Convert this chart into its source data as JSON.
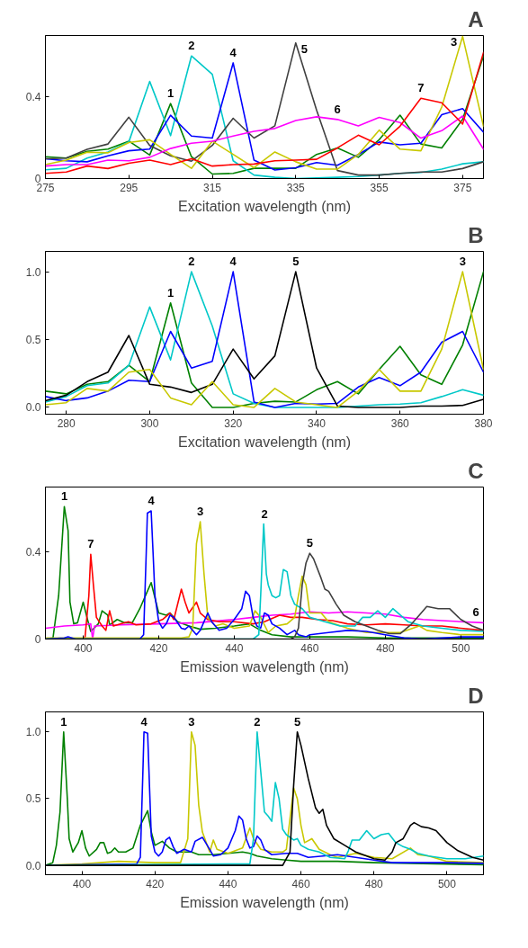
{
  "chart_data": [
    {
      "type": "line",
      "title": "A",
      "xlabel": "Excitation wavelength (nm)",
      "xlim": [
        275,
        380
      ],
      "xticks": [
        275,
        295,
        315,
        335,
        355,
        375
      ],
      "ylim": [
        0,
        0.7
      ],
      "yticks": [
        0,
        0.4
      ],
      "grid": false,
      "x": [
        275,
        280,
        285,
        290,
        295,
        300,
        305,
        310,
        315,
        320,
        325,
        330,
        335,
        340,
        345,
        350,
        355,
        360,
        365,
        370,
        375,
        380
      ],
      "series": [
        {
          "color": "#008000",
          "values": [
            0.107,
            0.1,
            0.133,
            0.144,
            0.183,
            0.115,
            0.367,
            0.107,
            0.022,
            0.025,
            0.05,
            0.05,
            0.05,
            0.118,
            0.15,
            0.104,
            0.19,
            0.31,
            0.169,
            0.15,
            0.29,
            0.6
          ]
        },
        {
          "color": "#00c8c8",
          "values": [
            0.043,
            0.05,
            0.1,
            0.13,
            0.18,
            0.475,
            0.21,
            0.6,
            0.51,
            0.087,
            0.017,
            0.006,
            0,
            0.003,
            0.006,
            0.01,
            0.017,
            0.025,
            0.03,
            0.046,
            0.072,
            0.082
          ]
        },
        {
          "color": "#0000ff",
          "values": [
            0.097,
            0.087,
            0.082,
            0.111,
            0.136,
            0.144,
            0.31,
            0.208,
            0.198,
            0.566,
            0.09,
            0.042,
            0.053,
            0.078,
            0.065,
            0.118,
            0.179,
            0.165,
            0.173,
            0.313,
            0.342,
            0.227
          ]
        },
        {
          "color": "#404040",
          "values": [
            0.097,
            0.1,
            0.143,
            0.169,
            0.3,
            0.162,
            0.111,
            0.085,
            0.162,
            0.295,
            0.198,
            0.258,
            0.664,
            0.335,
            0.039,
            0.017,
            0.017,
            0.025,
            0.032,
            0.032,
            0.049,
            0.082
          ]
        },
        {
          "color": "#c8c800",
          "values": [
            0.068,
            0.09,
            0.129,
            0.126,
            0.176,
            0.19,
            0.118,
            0.05,
            0.183,
            0.118,
            0.053,
            0.13,
            0.082,
            0.046,
            0.046,
            0.118,
            0.237,
            0.144,
            0.136,
            0.35,
            0.696,
            0.256
          ]
        },
        {
          "color": "#ff00ff",
          "values": [
            0.061,
            0.068,
            0.068,
            0.09,
            0.087,
            0.104,
            0.147,
            0.173,
            0.183,
            0.208,
            0.231,
            0.245,
            0.284,
            0.302,
            0.289,
            0.258,
            0.299,
            0.274,
            0.198,
            0.234,
            0.306,
            0.144
          ]
        },
        {
          "color": "#ff0000",
          "values": [
            0.025,
            0.032,
            0.061,
            0.049,
            0.075,
            0.09,
            0.068,
            0.097,
            0.061,
            0.068,
            0.071,
            0.087,
            0.09,
            0.094,
            0.15,
            0.212,
            0.165,
            0.256,
            0.393,
            0.371,
            0.267,
            0.617
          ]
        }
      ],
      "annotations": [
        {
          "text": "1",
          "x": 305,
          "y": 0.367
        },
        {
          "text": "2",
          "x": 310,
          "y": 0.6
        },
        {
          "text": "4",
          "x": 320,
          "y": 0.566
        },
        {
          "text": "5",
          "x": 335,
          "y": 0.664
        },
        {
          "text": "6",
          "x": 345,
          "y": 0.289
        },
        {
          "text": "7",
          "x": 365,
          "y": 0.393
        },
        {
          "text": "3",
          "x": 375,
          "y": 0.696
        }
      ]
    },
    {
      "type": "line",
      "title": "B",
      "xlabel": "Excitation wavelength (nm)",
      "xlim": [
        275,
        380
      ],
      "xticks": [
        280,
        300,
        320,
        340,
        360,
        380
      ],
      "ylim": [
        -0.05,
        1.15
      ],
      "yticks": [
        {
          "value": 0,
          "label": "0.0"
        },
        {
          "value": 0.5,
          "label": "0.5"
        },
        {
          "value": 1,
          "label": "1.0"
        }
      ],
      "grid": false,
      "x": [
        275,
        280,
        285,
        290,
        295,
        300,
        305,
        310,
        315,
        320,
        325,
        330,
        335,
        340,
        345,
        350,
        355,
        360,
        365,
        370,
        375,
        380
      ],
      "series": [
        {
          "color": "#008000",
          "values": [
            0.12,
            0.1,
            0.17,
            0.19,
            0.31,
            0.19,
            0.77,
            0.18,
            0,
            0,
            0.03,
            0.045,
            0.04,
            0.13,
            0.19,
            0.1,
            0.28,
            0.45,
            0.24,
            0.17,
            0.46,
            1.0
          ]
        },
        {
          "color": "#00c8c8",
          "values": [
            0.04,
            0.08,
            0.16,
            0.18,
            0.31,
            0.74,
            0.35,
            1.0,
            0.6,
            0.1,
            0.03,
            0,
            0,
            0,
            0,
            0.01,
            0.02,
            0.025,
            0.035,
            0.08,
            0.13,
            0.09
          ]
        },
        {
          "color": "#0000ff",
          "values": [
            0.08,
            0.05,
            0.07,
            0.12,
            0.2,
            0.19,
            0.56,
            0.29,
            0.34,
            1.0,
            0.04,
            0,
            0.03,
            0.025,
            0.03,
            0.15,
            0.22,
            0.16,
            0.26,
            0.48,
            0.56,
            0.26
          ]
        },
        {
          "color": "#000000",
          "values": [
            0.05,
            0.09,
            0.19,
            0.26,
            0.53,
            0.17,
            0.15,
            0.11,
            0.17,
            0.43,
            0.21,
            0.38,
            1.0,
            0.29,
            0.01,
            0,
            0,
            0,
            0.01,
            0.01,
            0.015,
            0.06
          ]
        },
        {
          "color": "#c8c800",
          "values": [
            0.02,
            0.035,
            0.14,
            0.12,
            0.26,
            0.28,
            0.07,
            0.02,
            0.19,
            0.02,
            0,
            0.14,
            0.04,
            0.02,
            0,
            0.12,
            0.28,
            0.12,
            0.12,
            0.43,
            1.0,
            0.28
          ]
        }
      ],
      "annotations": [
        {
          "text": "1",
          "x": 305,
          "y": 0.77
        },
        {
          "text": "2",
          "x": 310,
          "y": 1.0
        },
        {
          "text": "4",
          "x": 320,
          "y": 1.0
        },
        {
          "text": "5",
          "x": 335,
          "y": 1.0
        },
        {
          "text": "3",
          "x": 375,
          "y": 1.0
        }
      ]
    },
    {
      "type": "line",
      "title": "C",
      "xlabel": "Emission wavelength (nm)",
      "xlim": [
        390,
        506
      ],
      "xticks": [
        400,
        420,
        440,
        460,
        480,
        500
      ],
      "ylim": [
        0,
        0.7
      ],
      "yticks": [
        0,
        0.4
      ],
      "grid": false,
      "series": [
        {
          "color": "#008000",
          "x": [
            390,
            392,
            393.5,
            395,
            396,
            396.5,
            397.5,
            398.5,
            400,
            401,
            402,
            404,
            405,
            406.5,
            407,
            409,
            411,
            413,
            415,
            417,
            418,
            419,
            420,
            422,
            423,
            425,
            428,
            431,
            435,
            440,
            444,
            447,
            450,
            455,
            460,
            470,
            480,
            490,
            500,
            506
          ],
          "values": [
            0,
            0.005,
            0.2,
            0.61,
            0.5,
            0.17,
            0.07,
            0.075,
            0.17,
            0.1,
            0.035,
            0.07,
            0.13,
            0.11,
            0.065,
            0.09,
            0.075,
            0.075,
            0.14,
            0.22,
            0.26,
            0.19,
            0.12,
            0.11,
            0.12,
            0.08,
            0.06,
            0.045,
            0.05,
            0.06,
            0.07,
            0.04,
            0.02,
            0.01,
            0.01,
            0.01,
            0.005,
            0.005,
            0.005,
            0.005
          ]
        },
        {
          "color": "#ff00ff",
          "x": [
            390,
            395,
            400,
            402,
            402.5,
            403,
            410,
            420,
            430,
            440,
            445,
            450,
            455,
            460,
            465,
            470,
            475,
            480,
            485,
            490,
            495,
            500,
            506
          ],
          "values": [
            0.05,
            0.06,
            0.065,
            0.07,
            0.0,
            0.06,
            0.065,
            0.07,
            0.075,
            0.09,
            0.1,
            0.11,
            0.115,
            0.125,
            0.12,
            0.125,
            0.12,
            0.115,
            0.1,
            0.09,
            0.085,
            0.08,
            0.075
          ]
        },
        {
          "color": "#ff0000",
          "x": [
            390,
            400,
            400.5,
            401.5,
            402,
            402.7,
            403.5,
            405,
            406,
            407,
            408,
            410,
            412,
            414,
            418,
            421,
            423,
            424,
            426,
            427,
            428,
            430,
            431,
            433,
            436,
            440,
            445,
            448,
            452,
            455,
            458,
            462,
            466,
            470,
            475,
            480,
            485,
            490,
            495,
            500,
            506
          ],
          "values": [
            0,
            0,
            0.01,
            0.2,
            0.39,
            0.25,
            0.1,
            0.06,
            0.04,
            0.13,
            0.06,
            0.07,
            0.08,
            0.065,
            0.07,
            0.09,
            0.12,
            0.09,
            0.23,
            0.17,
            0.12,
            0.17,
            0.12,
            0.09,
            0.08,
            0.08,
            0.07,
            0.08,
            0.11,
            0.1,
            0.1,
            0.09,
            0.085,
            0.07,
            0.065,
            0.07,
            0.065,
            0.06,
            0.06,
            0.05,
            0.04
          ]
        },
        {
          "color": "#c8c800",
          "x": [
            390,
            400,
            410,
            420,
            426,
            428,
            429,
            430,
            431,
            432,
            433,
            435,
            437,
            440,
            444,
            445.5,
            447,
            449,
            451,
            454,
            456,
            457,
            458,
            459,
            460,
            463,
            465,
            470,
            475,
            480,
            484,
            489,
            491,
            495,
            500,
            506
          ],
          "values": [
            0.005,
            0.005,
            0.005,
            0.005,
            0.005,
            0.01,
            0.05,
            0.44,
            0.54,
            0.3,
            0.1,
            0.06,
            0.07,
            0.05,
            0.06,
            0.13,
            0.1,
            0.03,
            0.06,
            0.07,
            0.1,
            0.2,
            0.29,
            0.25,
            0.12,
            0.12,
            0.08,
            0.05,
            0.03,
            0.03,
            0.03,
            0.06,
            0.04,
            0.03,
            0.02,
            0.02
          ]
        },
        {
          "color": "#0000ff",
          "x": [
            390,
            395,
            396,
            398,
            415,
            416,
            416.7,
            417,
            418,
            418.5,
            419,
            420,
            421,
            422,
            423,
            424,
            426,
            427,
            428,
            430,
            431,
            433,
            434,
            436,
            438,
            440,
            442,
            443,
            444,
            445,
            446,
            447,
            448,
            449,
            450,
            452,
            454,
            456,
            457,
            459,
            460,
            465,
            470,
            475,
            480,
            485,
            490,
            500,
            506
          ],
          "values": [
            0,
            0.005,
            0.01,
            0,
            0,
            0.02,
            0.4,
            0.58,
            0.59,
            0.4,
            0.2,
            0.08,
            0.05,
            0.07,
            0.11,
            0.1,
            0.05,
            0.045,
            0.06,
            0.02,
            0.04,
            0.12,
            0.08,
            0.04,
            0.05,
            0.09,
            0.14,
            0.22,
            0.2,
            0.1,
            0.06,
            0.05,
            0.12,
            0.11,
            0.07,
            0.05,
            0.02,
            0.04,
            0.02,
            0.01,
            0.02,
            0.03,
            0.04,
            0.035,
            0.02,
            0.005,
            0,
            0.01,
            0.01
          ]
        },
        {
          "color": "#00c8c8",
          "x": [
            390,
            445,
            446.5,
            447,
            447.8,
            448.5,
            449,
            450,
            451,
            452,
            453,
            454,
            455,
            456,
            458,
            460,
            462,
            464,
            468,
            472,
            474,
            476,
            478,
            480,
            482,
            484,
            486,
            490,
            495,
            500,
            506
          ],
          "values": [
            0,
            0,
            0.02,
            0.2,
            0.53,
            0.3,
            0.25,
            0.2,
            0.19,
            0.2,
            0.32,
            0.31,
            0.2,
            0.16,
            0.14,
            0.1,
            0.09,
            0.08,
            0.06,
            0.06,
            0.1,
            0.1,
            0.13,
            0.1,
            0.14,
            0.11,
            0.08,
            0.06,
            0.05,
            0.04,
            0.035
          ]
        },
        {
          "color": "#404040",
          "x": [
            390,
            455,
            456,
            457,
            458,
            459,
            460,
            461,
            463,
            464,
            465,
            467,
            469,
            472,
            475,
            478,
            481,
            484,
            487,
            489,
            491,
            494,
            497,
            500,
            503,
            506
          ],
          "values": [
            0,
            0,
            0.01,
            0.05,
            0.25,
            0.35,
            0.395,
            0.37,
            0.28,
            0.23,
            0.22,
            0.16,
            0.11,
            0.08,
            0.06,
            0.04,
            0.025,
            0.025,
            0.07,
            0.11,
            0.15,
            0.14,
            0.14,
            0.09,
            0.06,
            0.04
          ]
        }
      ],
      "annotations": [
        {
          "text": "1",
          "x": 395,
          "y": 0.61
        },
        {
          "text": "7",
          "x": 402,
          "y": 0.39
        },
        {
          "text": "4",
          "x": 418,
          "y": 0.59
        },
        {
          "text": "3",
          "x": 431,
          "y": 0.54
        },
        {
          "text": "2",
          "x": 448,
          "y": 0.53
        },
        {
          "text": "5",
          "x": 460,
          "y": 0.395
        },
        {
          "text": "6",
          "x": 504,
          "y": 0.075
        }
      ]
    },
    {
      "type": "line",
      "title": "D",
      "xlabel": "Emission wavelength (nm)",
      "xlim": [
        390,
        510
      ],
      "xticks": [
        400,
        420,
        440,
        460,
        480,
        500
      ],
      "ylim": [
        -0.07,
        1.15
      ],
      "yticks": [
        {
          "value": 0,
          "label": "0.0"
        },
        {
          "value": 0.5,
          "label": "0.5"
        },
        {
          "value": 1,
          "label": "1.0"
        }
      ],
      "grid": false,
      "series": [
        {
          "color": "#008000",
          "x": [
            390,
            392,
            393,
            394,
            395,
            396,
            396.5,
            397.5,
            399,
            400,
            401,
            402,
            404,
            405,
            406,
            407,
            408,
            409,
            410,
            412,
            414,
            416,
            418,
            419,
            420,
            422,
            424,
            426,
            430,
            432,
            436,
            440,
            444,
            446,
            448,
            452,
            456,
            460,
            470,
            480,
            490,
            500,
            510
          ],
          "values": [
            0,
            0.02,
            0.15,
            0.4,
            1.0,
            0.5,
            0.2,
            0.1,
            0.17,
            0.26,
            0.13,
            0.07,
            0.12,
            0.17,
            0.17,
            0.09,
            0.1,
            0.13,
            0.1,
            0.1,
            0.13,
            0.3,
            0.41,
            0.25,
            0.15,
            0.18,
            0.13,
            0.1,
            0.1,
            0.08,
            0.08,
            0.09,
            0.1,
            0.09,
            0.07,
            0.05,
            0.04,
            0.03,
            0.03,
            0.02,
            0.015,
            0.01,
            0.005
          ]
        },
        {
          "color": "#c8c800",
          "x": [
            390,
            400,
            410,
            420,
            427,
            429,
            430,
            431,
            432,
            433,
            435,
            436,
            437,
            440,
            444,
            446,
            447,
            449,
            452,
            455,
            456,
            457,
            458,
            459,
            460,
            461,
            463,
            465,
            468,
            470,
            475,
            480,
            485,
            490,
            492,
            495,
            500,
            510
          ],
          "values": [
            0,
            0.01,
            0.03,
            0.02,
            0.02,
            0.2,
            1.0,
            0.9,
            0.45,
            0.25,
            0.1,
            0.19,
            0.12,
            0.09,
            0.13,
            0.28,
            0.2,
            0.12,
            0.1,
            0.1,
            0.12,
            0.35,
            0.58,
            0.5,
            0.3,
            0.17,
            0.2,
            0.12,
            0.08,
            0.06,
            0.09,
            0.06,
            0.05,
            0.13,
            0.08,
            0.07,
            0.03,
            0.02
          ]
        },
        {
          "color": "#0000ff",
          "x": [
            390,
            415,
            416,
            416.7,
            417,
            418,
            418.5,
            419,
            420,
            421,
            422,
            423,
            424,
            425,
            426,
            428,
            430,
            431,
            433,
            435,
            436,
            438,
            440,
            442,
            443,
            444,
            445,
            446,
            447,
            448,
            449,
            450,
            452,
            456,
            459,
            462,
            466,
            470,
            475,
            480,
            485,
            490,
            500,
            510
          ],
          "values": [
            0,
            0.01,
            0.06,
            0.7,
            1.0,
            0.99,
            0.6,
            0.22,
            0.1,
            0.07,
            0.1,
            0.19,
            0.21,
            0.14,
            0.09,
            0.12,
            0.1,
            0.18,
            0.21,
            0.12,
            0.07,
            0.08,
            0.13,
            0.26,
            0.37,
            0.34,
            0.2,
            0.13,
            0.14,
            0.22,
            0.19,
            0.12,
            0.08,
            0.09,
            0.09,
            0.06,
            0.07,
            0.08,
            0.06,
            0.04,
            0.02,
            0.02,
            0.02,
            0.015
          ]
        },
        {
          "color": "#00c8c8",
          "x": [
            390,
            440,
            446,
            447,
            448,
            449,
            450,
            451,
            452,
            453,
            454,
            455,
            456,
            458,
            459,
            460,
            462,
            465,
            468,
            472,
            473,
            474,
            476,
            478,
            480,
            482,
            484,
            486,
            488,
            490,
            492,
            495,
            500,
            505,
            510
          ],
          "values": [
            0,
            0.01,
            0.01,
            0.2,
            1.0,
            0.7,
            0.4,
            0.37,
            0.33,
            0.62,
            0.5,
            0.27,
            0.23,
            0.19,
            0.2,
            0.15,
            0.12,
            0.1,
            0.06,
            0.05,
            0.11,
            0.19,
            0.19,
            0.26,
            0.2,
            0.23,
            0.24,
            0.17,
            0.14,
            0.12,
            0.09,
            0.07,
            0.05,
            0.05,
            0.07
          ]
        },
        {
          "color": "#000000",
          "x": [
            390,
            455,
            456,
            457,
            458,
            459,
            460,
            462,
            464,
            465,
            466,
            467,
            469,
            472,
            475,
            478,
            480,
            483,
            485,
            486,
            488,
            490,
            491,
            493,
            495,
            497,
            500,
            503,
            507,
            510
          ],
          "values": [
            0,
            0,
            0.05,
            0.1,
            0.6,
            1.0,
            0.9,
            0.65,
            0.43,
            0.39,
            0.42,
            0.3,
            0.2,
            0.15,
            0.1,
            0.07,
            0.05,
            0.04,
            0.1,
            0.17,
            0.2,
            0.3,
            0.32,
            0.29,
            0.28,
            0.26,
            0.17,
            0.11,
            0.06,
            0.04
          ]
        }
      ],
      "annotations": [
        {
          "text": "1",
          "x": 395,
          "y": 1.0
        },
        {
          "text": "4",
          "x": 417,
          "y": 1.0
        },
        {
          "text": "3",
          "x": 430,
          "y": 1.0
        },
        {
          "text": "2",
          "x": 448,
          "y": 1.0
        },
        {
          "text": "5",
          "x": 459,
          "y": 1.0
        }
      ]
    }
  ]
}
